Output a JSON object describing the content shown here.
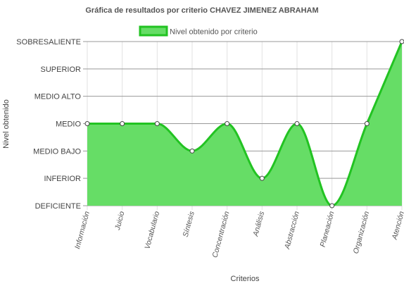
{
  "chart_data": {
    "type": "area",
    "title": "Gráfica de resultados por criterio CHAVEZ JIMENEZ ABRAHAM",
    "xlabel": "Criterios",
    "ylabel": "Nivel obtenido",
    "y_levels": [
      "DEFICIENTE",
      "INFERIOR",
      "MEDIO BAJO",
      "MEDIO",
      "MEDIO ALTO",
      "SUPERIOR",
      "SOBRESALIENTE"
    ],
    "categories": [
      "Información",
      "Juicio",
      "Vocabulario",
      "Síntesis",
      "Concentración",
      "Análisis",
      "Abstracción",
      "Planeación",
      "Organización",
      "Atención"
    ],
    "series": [
      {
        "name": "Nivel obtenido por criterio",
        "values": [
          "MEDIO",
          "MEDIO",
          "MEDIO",
          "MEDIO BAJO",
          "MEDIO",
          "INFERIOR",
          "MEDIO",
          "DEFICIENTE",
          "MEDIO",
          "SOBRESALIENTE"
        ],
        "line_color": "#22c322",
        "fill_color": "#66dd66"
      }
    ],
    "legend_position": "top",
    "grid": true
  }
}
